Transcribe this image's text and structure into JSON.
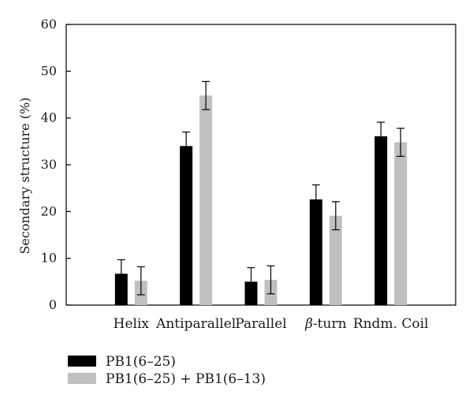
{
  "chart_data": {
    "type": "bar",
    "title": "",
    "xlabel": "",
    "ylabel": "Secondary structure (%)",
    "ylim": [
      0,
      60
    ],
    "yticks": [
      0,
      10,
      20,
      30,
      40,
      50,
      60
    ],
    "grid": false,
    "legend_position": "bottom-left",
    "categories": [
      "Helix",
      "Antiparallel",
      "Parallel",
      "β-turn",
      "Rndm. Coil"
    ],
    "series": [
      {
        "name": "PB1(6–25)",
        "color": "#000000",
        "values": [
          6.7,
          34,
          5,
          22.6,
          36.1
        ],
        "errors": [
          3.0,
          3.0,
          3.0,
          3.1,
          3.0
        ]
      },
      {
        "name": "PB1(6–25) + PB1(6–13)",
        "color": "#c0c0c0",
        "values": [
          5.2,
          44.8,
          5.4,
          19.1,
          34.8
        ],
        "errors": [
          3.0,
          3.0,
          3.0,
          3.0,
          3.0
        ]
      }
    ]
  }
}
